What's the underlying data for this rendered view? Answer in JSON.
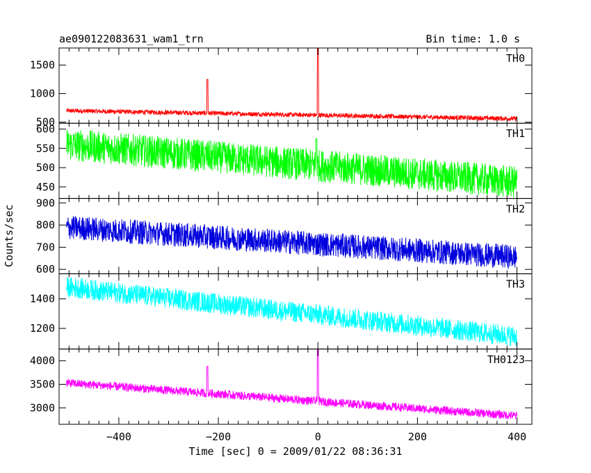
{
  "chart_data": {
    "type": "line",
    "title": "ae090122083631_wam1_trn",
    "bin_time": "Bin time: 1.0 s",
    "xlabel": "Time [sec] 0 = 2009/01/22 08:36:31",
    "ylabel": "Counts/sec",
    "xlim": [
      -520,
      430
    ],
    "xticks": [
      -400,
      -200,
      0,
      200,
      400
    ],
    "panels": [
      {
        "name": "TH0",
        "color": "#ff0000",
        "ylim": [
          480,
          1800
        ],
        "yticks": [
          500,
          1000,
          1500
        ],
        "trend": {
          "start": 700,
          "end": 560
        },
        "noise": 40,
        "peaks": [
          {
            "x": -222,
            "y": 1250
          },
          {
            "x": 0,
            "y": 1800
          }
        ]
      },
      {
        "name": "TH1",
        "color": "#00ff00",
        "ylim": [
          420,
          615
        ],
        "yticks": [
          450,
          500,
          550,
          600
        ],
        "trend": {
          "start": 560,
          "end": 462
        },
        "noise": 42,
        "peaks": [
          {
            "x": -3,
            "y": 575
          }
        ]
      },
      {
        "name": "TH2",
        "color": "#0000dd",
        "ylim": [
          580,
          920
        ],
        "yticks": [
          600,
          700,
          800,
          900
        ],
        "trend": {
          "start": 790,
          "end": 655
        },
        "noise": 55,
        "peaks": []
      },
      {
        "name": "TH3",
        "color": "#00ffff",
        "ylim": [
          1060,
          1570
        ],
        "yticks": [
          1200,
          1400
        ],
        "trend": {
          "start": 1480,
          "end": 1145
        },
        "noise": 70,
        "peaks": []
      },
      {
        "name": "TH0123",
        "color": "#ff00ff",
        "ylim": [
          2650,
          4250
        ],
        "yticks": [
          3000,
          3500,
          4000
        ],
        "trend": {
          "start": 3530,
          "end": 2830
        },
        "noise": 90,
        "peaks": [
          {
            "x": -222,
            "y": 3880
          },
          {
            "x": 0,
            "y": 4250
          }
        ]
      }
    ]
  }
}
